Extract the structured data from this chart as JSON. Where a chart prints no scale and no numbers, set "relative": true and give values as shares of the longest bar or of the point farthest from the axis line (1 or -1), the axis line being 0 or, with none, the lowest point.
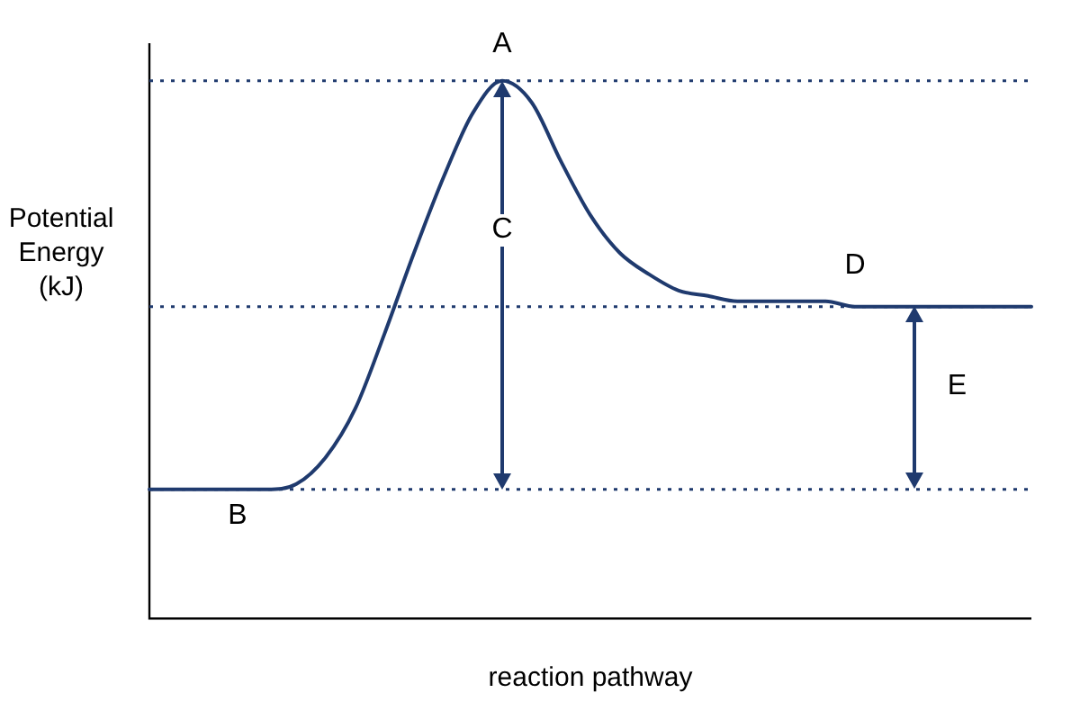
{
  "chart_data": {
    "type": "line",
    "relative": true,
    "xlabel": "reaction pathway",
    "ylabel": "Potential Energy (kJ)",
    "categories": [
      null,
      null,
      null,
      null,
      null,
      null,
      null,
      null,
      null,
      null,
      null,
      null,
      null,
      null,
      null,
      null,
      null,
      null,
      null,
      null,
      null,
      null,
      null,
      null,
      null,
      null,
      null,
      null,
      null,
      null,
      null
    ],
    "series": [
      {
        "color": "#1f3a6e",
        "values": [
          0.24,
          0.24,
          0.24,
          0.24,
          0.24,
          0.25,
          0.3,
          0.39,
          0.53,
          0.68,
          0.82,
          0.94,
          1,
          0.96,
          0.85,
          0.75,
          0.68,
          0.64,
          0.61,
          0.6,
          0.59,
          0.59,
          0.59,
          0.59,
          0.58,
          0.58,
          0.58,
          0.58,
          0.58,
          0.58,
          0.58
        ]
      }
    ],
    "ref_lines": [
      {
        "axis": "y",
        "value": 1,
        "color": "#1f3a6e",
        "line_style": "dotted"
      },
      {
        "axis": "y",
        "value": 0.58,
        "color": "#1f3a6e",
        "line_style": "dotted"
      },
      {
        "axis": "y",
        "value": 0.24,
        "color": "#1f3a6e",
        "line_style": "dotted"
      }
    ],
    "annotations": [
      "A",
      "B",
      "C",
      "D",
      "E"
    ],
    "grid": false,
    "legend": false,
    "marker": "none",
    "line_style": "solid"
  }
}
